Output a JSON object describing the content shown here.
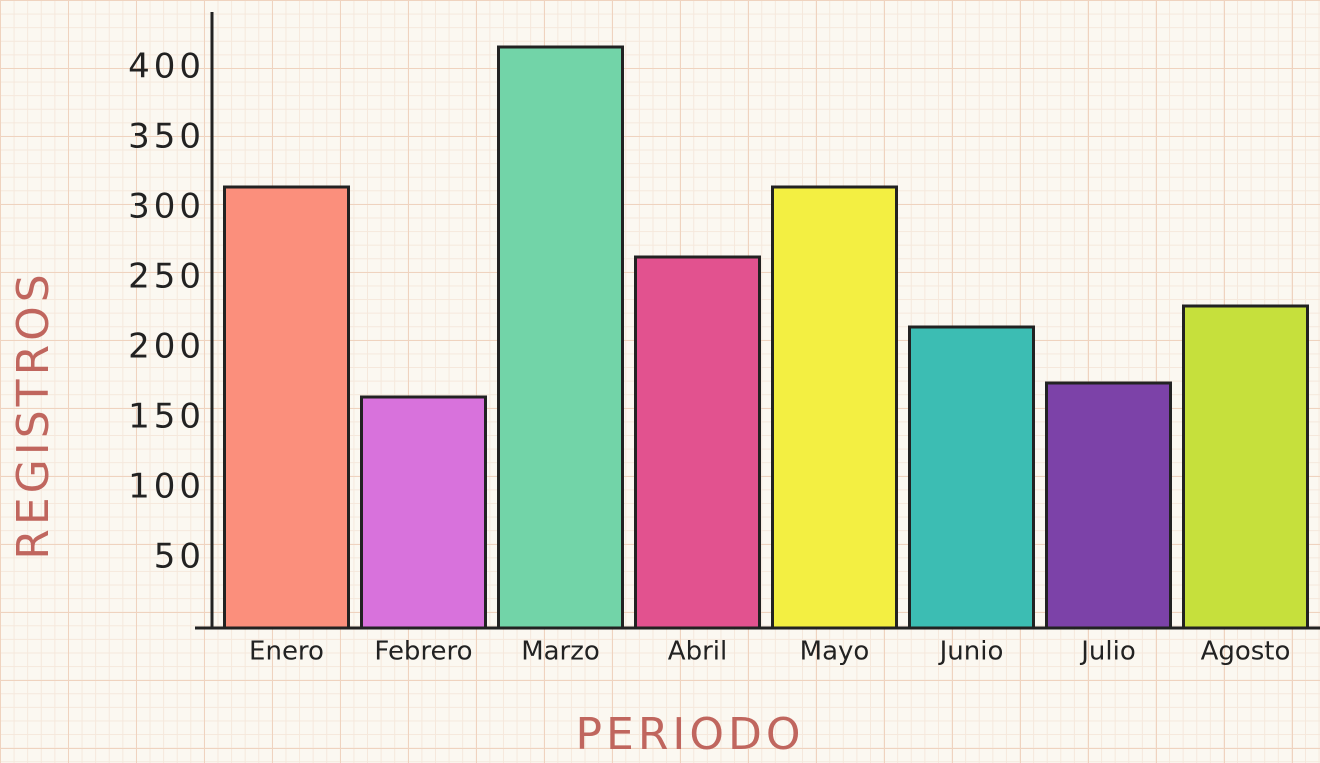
{
  "chart_data": {
    "type": "bar",
    "x_label": "PERIODO",
    "y_label": "REGISTROS",
    "categories": [
      "Enero",
      "Febrero",
      "Marzo",
      "Abril",
      "Mayo",
      "Junio",
      "Julio",
      "Agosto"
    ],
    "values": [
      315,
      165,
      415,
      265,
      315,
      215,
      175,
      230
    ],
    "colors": [
      "#fb8f7c",
      "#d872dc",
      "#72d4a8",
      "#e2528f",
      "#f3ef42",
      "#3cbdb3",
      "#7c42a8",
      "#c6e03c"
    ],
    "ylim": [
      0,
      440
    ],
    "yticks": [
      50,
      100,
      150,
      200,
      250,
      300,
      350,
      400
    ],
    "grid": false
  }
}
